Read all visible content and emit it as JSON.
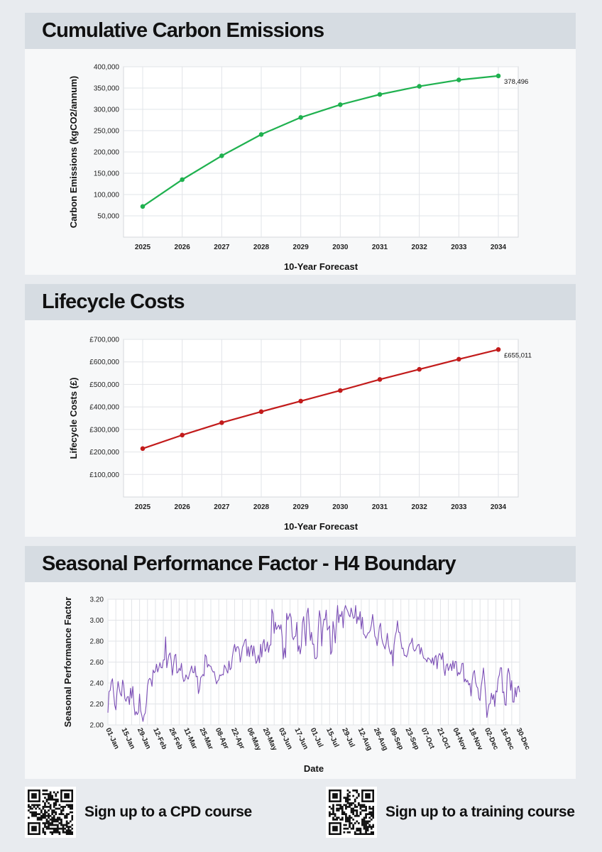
{
  "chart_data": [
    {
      "type": "line",
      "title": "Cumulative Carbon Emissions",
      "xlabel": "10-Year Forecast",
      "ylabel": "Carbon Emissions (kgCO2/annum)",
      "categories": [
        "2025",
        "2026",
        "2027",
        "2028",
        "2029",
        "2030",
        "2031",
        "2032",
        "2033",
        "2034"
      ],
      "values": [
        72000,
        135000,
        191000,
        241000,
        281000,
        311000,
        335000,
        354000,
        369000,
        378496
      ],
      "ylim": [
        0,
        400000
      ],
      "yticks": [
        50000,
        100000,
        150000,
        200000,
        250000,
        300000,
        350000,
        400000
      ],
      "ytick_labels": [
        "50,000",
        "100,000",
        "150,000",
        "200,000",
        "250,000",
        "300,000",
        "350,000",
        "400,000"
      ],
      "end_label": "378,496",
      "color": "#1fb14f"
    },
    {
      "type": "line",
      "title": "Lifecycle Costs",
      "xlabel": "10-Year Forecast",
      "ylabel": "Lifecycle Costs (£)",
      "categories": [
        "2025",
        "2026",
        "2027",
        "2028",
        "2029",
        "2030",
        "2031",
        "2032",
        "2033",
        "2034"
      ],
      "values": [
        215000,
        275000,
        330000,
        379000,
        426000,
        473000,
        522000,
        567000,
        612000,
        655011
      ],
      "ylim": [
        0,
        700000
      ],
      "yticks": [
        100000,
        200000,
        300000,
        400000,
        500000,
        600000,
        700000
      ],
      "ytick_labels": [
        "£100,000",
        "£200,000",
        "£300,000",
        "£400,000",
        "£500,000",
        "£600,000",
        "£700,000"
      ],
      "end_label": "£655,011",
      "color": "#c21b1b"
    },
    {
      "type": "line",
      "title": "Seasonal Performance Factor - H4 Boundary",
      "xlabel": "Date",
      "ylabel": "Seasonal Performance Factor",
      "categories": [
        "01-Jan",
        "15-Jan",
        "29-Jan",
        "12-Feb",
        "26-Feb",
        "11-Mar",
        "25-Mar",
        "08-Apr",
        "22-Apr",
        "06-May",
        "20-May",
        "03-Jun",
        "17-Jun",
        "01-Jul",
        "15-Jul",
        "29-Jul",
        "12-Aug",
        "26-Aug",
        "09-Sep",
        "23-Sep",
        "07-Oct",
        "21-Oct",
        "04-Nov",
        "18-Nov",
        "02-Dec",
        "16-Dec",
        "30-Dec"
      ],
      "category_days": [
        0,
        14,
        28,
        42,
        56,
        69,
        83,
        97,
        111,
        125,
        139,
        153,
        167,
        181,
        195,
        209,
        223,
        237,
        251,
        265,
        279,
        293,
        307,
        321,
        335,
        349,
        363
      ],
      "ylim": [
        2.0,
        3.2
      ],
      "yticks": [
        2.0,
        2.2,
        2.4,
        2.6,
        2.8,
        3.0,
        3.2
      ],
      "ytick_labels": [
        "2.00",
        "2.20",
        "2.40",
        "2.60",
        "2.80",
        "3.00",
        "3.20"
      ],
      "days": 365,
      "anchors": [
        [
          0,
          2.18
        ],
        [
          14,
          2.35
        ],
        [
          28,
          2.22
        ],
        [
          42,
          2.45
        ],
        [
          56,
          2.55
        ],
        [
          69,
          2.47
        ],
        [
          83,
          2.52
        ],
        [
          97,
          2.46
        ],
        [
          111,
          2.62
        ],
        [
          125,
          2.65
        ],
        [
          139,
          2.78
        ],
        [
          153,
          2.86
        ],
        [
          167,
          2.88
        ],
        [
          181,
          2.93
        ],
        [
          195,
          3.02
        ],
        [
          209,
          3.05
        ],
        [
          223,
          2.98
        ],
        [
          237,
          2.93
        ],
        [
          251,
          2.84
        ],
        [
          265,
          2.72
        ],
        [
          279,
          2.68
        ],
        [
          293,
          2.6
        ],
        [
          307,
          2.5
        ],
        [
          321,
          2.4
        ],
        [
          335,
          2.36
        ],
        [
          349,
          2.36
        ],
        [
          364,
          2.4
        ]
      ],
      "color": "#7c4fb6"
    }
  ],
  "footer": {
    "cpd_label": "Sign up to a CPD course",
    "training_label": "Sign up to a training course"
  }
}
